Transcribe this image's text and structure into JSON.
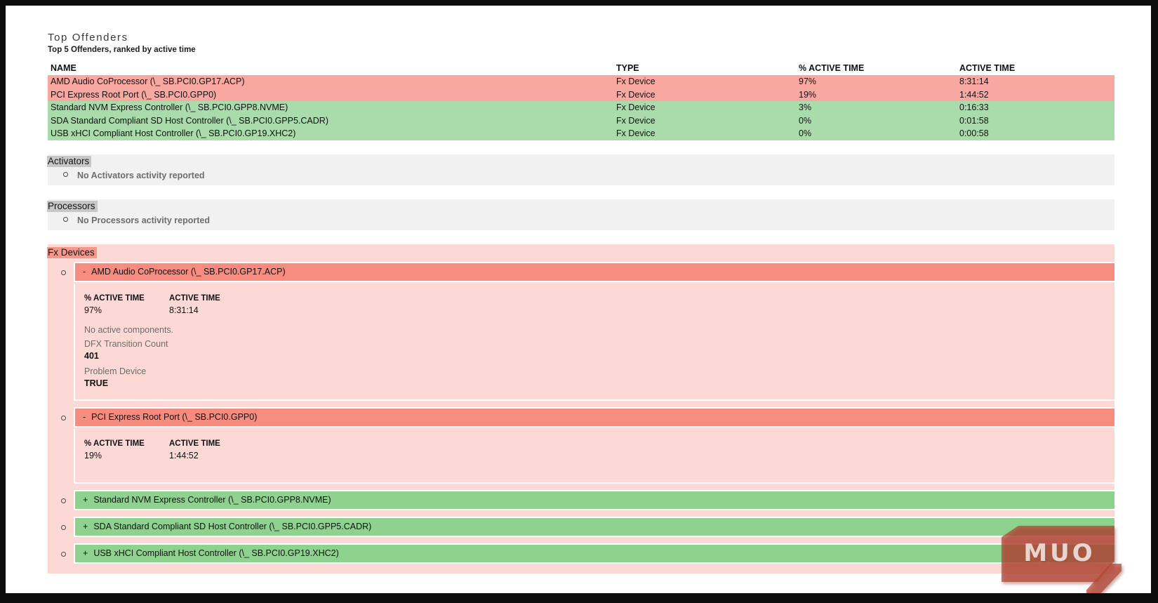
{
  "header": {
    "title": "Top Offenders",
    "subtitle": "Top 5 Offenders, ranked by active time"
  },
  "table": {
    "columns": [
      "NAME",
      "TYPE",
      "% ACTIVE TIME",
      "ACTIVE TIME"
    ],
    "rows": [
      {
        "name": "AMD Audio CoProcessor (\\_ SB.PCI0.GP17.ACP)",
        "type": "Fx Device",
        "pct_active_time": "97%",
        "active_time": "8:31:14",
        "severity": "high"
      },
      {
        "name": "PCI Express Root Port (\\_ SB.PCI0.GPP0)",
        "type": "Fx Device",
        "pct_active_time": "19%",
        "active_time": "1:44:52",
        "severity": "high"
      },
      {
        "name": "Standard NVM Express Controller (\\_ SB.PCI0.GPP8.NVME)",
        "type": "Fx Device",
        "pct_active_time": "3%",
        "active_time": "0:16:33",
        "severity": "low"
      },
      {
        "name": "SDA Standard Compliant SD Host Controller (\\_ SB.PCI0.GPP5.CADR)",
        "type": "Fx Device",
        "pct_active_time": "0%",
        "active_time": "0:01:58",
        "severity": "low"
      },
      {
        "name": "USB xHCI Compliant Host Controller (\\_ SB.PCI0.GP19.XHC2)",
        "type": "Fx Device",
        "pct_active_time": "0%",
        "active_time": "0:00:58",
        "severity": "low"
      }
    ]
  },
  "sections": {
    "activators": {
      "heading": "Activators",
      "empty_message": "No Activators activity reported"
    },
    "processors": {
      "heading": "Processors",
      "empty_message": "No Processors activity reported"
    },
    "fx_devices": {
      "heading": "Fx Devices",
      "detail_columns": {
        "pct": "% ACTIVE TIME",
        "time": "ACTIVE TIME"
      },
      "items": [
        {
          "toggle": "-",
          "label": "AMD Audio CoProcessor (\\_ SB.PCI0.GP17.ACP)",
          "severity": "high",
          "expanded": true,
          "pct_active_time": "97%",
          "active_time": "8:31:14",
          "note": "No active components.",
          "fields": [
            {
              "label": "DFX Transition Count",
              "value": "401"
            },
            {
              "label": "Problem Device",
              "value": "TRUE"
            }
          ]
        },
        {
          "toggle": "-",
          "label": "PCI Express Root Port (\\_ SB.PCI0.GPP0)",
          "severity": "high",
          "expanded": true,
          "pct_active_time": "19%",
          "active_time": "1:44:52"
        },
        {
          "toggle": "+",
          "label": "Standard NVM Express Controller (\\_ SB.PCI0.GPP8.NVME)",
          "severity": "low",
          "expanded": false
        },
        {
          "toggle": "+",
          "label": "SDA Standard Compliant SD Host Controller (\\_ SB.PCI0.GPP5.CADR)",
          "severity": "low",
          "expanded": false
        },
        {
          "toggle": "+",
          "label": "USB xHCI Compliant Host Controller (\\_ SB.PCI0.GP19.XHC2)",
          "severity": "low",
          "expanded": false
        }
      ]
    }
  },
  "watermark": {
    "text": "MUO"
  },
  "colors": {
    "frame_border": "#0c0c0c",
    "table_row_high": "#f9a8a1",
    "table_row_low": "#aadbab",
    "section_gray_body": "#f1f1f1",
    "section_gray_highlight": "#c7c7c7",
    "fx_section_body": "#fcd9d4",
    "fx_heading_highlight": "#f5988c",
    "device_header_high": "#f68c80",
    "device_header_low": "#8fd290",
    "muted_text": "#6d6d6d",
    "watermark_red": "rgba(178,68,51,0.72)"
  }
}
